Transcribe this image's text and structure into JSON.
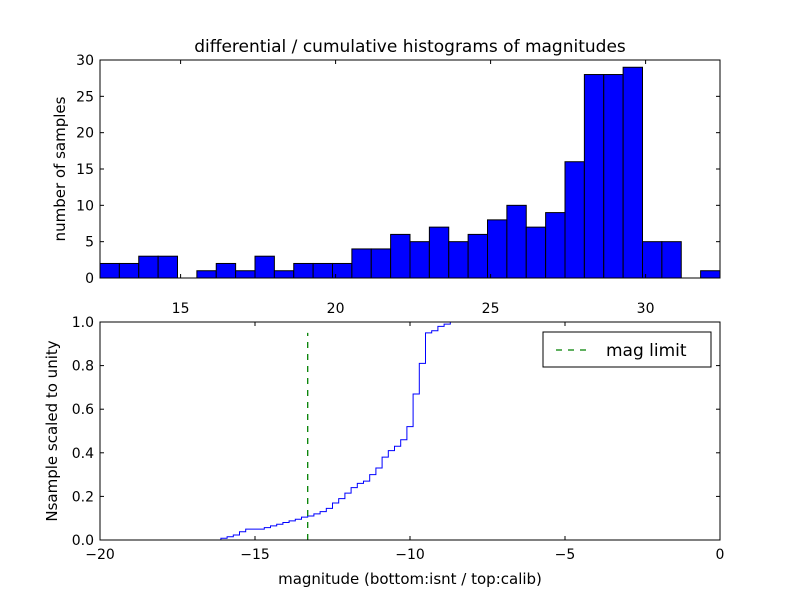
{
  "figure": {
    "title": "differential / cumulative histograms of magnitudes"
  },
  "chart_data": [
    {
      "type": "bar",
      "title": "differential / cumulative histograms of magnitudes",
      "xlabel": "",
      "ylabel": "number of samples",
      "xlim": [
        12.4,
        32.4
      ],
      "ylim": [
        0,
        30
      ],
      "x_ticks": [
        15,
        20,
        25,
        30
      ],
      "x_tick_labels": [
        "15",
        "20",
        "25",
        "30"
      ],
      "y_ticks": [
        0,
        5,
        10,
        15,
        20,
        25,
        30
      ],
      "y_tick_labels": [
        "0",
        "5",
        "10",
        "15",
        "20",
        "25",
        "30"
      ],
      "x_tick_position": "top-of-lower-panel",
      "bar_color": "#0000ff",
      "bin_start": 12.4,
      "bin_width": 0.625,
      "values": [
        2,
        2,
        3,
        3,
        0,
        1,
        2,
        1,
        3,
        1,
        2,
        2,
        2,
        4,
        4,
        6,
        5,
        7,
        5,
        6,
        8,
        10,
        7,
        9,
        16,
        28,
        28,
        29,
        5,
        5,
        0,
        1
      ],
      "grid": false
    },
    {
      "type": "line",
      "drawstyle": "steps",
      "title": "",
      "xlabel": "magnitude (bottom:isnt / top:calib)",
      "ylabel": "Nsample scaled to unity",
      "xlim": [
        -20,
        0
      ],
      "ylim": [
        0,
        1.0
      ],
      "x_ticks": [
        -20,
        -15,
        -10,
        -5,
        0
      ],
      "x_tick_labels": [
        "−20",
        "−15",
        "−10",
        "−5",
        "0"
      ],
      "y_ticks": [
        0,
        0.2,
        0.4,
        0.6,
        0.8,
        1.0
      ],
      "y_tick_labels": [
        "0.0",
        "0.2",
        "0.4",
        "0.6",
        "0.8",
        "1.0"
      ],
      "series": [
        {
          "color": "#0000ff",
          "x": [
            -20,
            -16.1,
            -15.9,
            -15.7,
            -15.5,
            -15.3,
            -14.7,
            -14.5,
            -14.3,
            -14.1,
            -13.9,
            -13.7,
            -13.5,
            -13.3,
            -13.1,
            -12.9,
            -12.7,
            -12.5,
            -12.3,
            -12.1,
            -11.9,
            -11.7,
            -11.5,
            -11.3,
            -11.1,
            -10.9,
            -10.7,
            -10.5,
            -10.3,
            -10.1,
            -9.9,
            -9.7,
            -9.5,
            -9.3,
            -9.1,
            -8.9,
            -8.7,
            -8.5,
            -8.3,
            0
          ],
          "y": [
            0,
            0.008,
            0.015,
            0.023,
            0.038,
            0.05,
            0.057,
            0.065,
            0.072,
            0.08,
            0.088,
            0.095,
            0.105,
            0.11,
            0.12,
            0.13,
            0.145,
            0.17,
            0.19,
            0.215,
            0.24,
            0.26,
            0.27,
            0.3,
            0.33,
            0.38,
            0.41,
            0.43,
            0.46,
            0.52,
            0.67,
            0.81,
            0.95,
            0.96,
            0.98,
            0.99,
            1.0,
            1.0,
            1.0,
            1.0
          ]
        }
      ],
      "vline": {
        "x": -13.3,
        "style": "dashed",
        "color": "#008000",
        "ymax": 0.95
      },
      "legend": {
        "position": "top-right",
        "entries": [
          {
            "label": "mag limit",
            "color": "#008000",
            "style": "dashed"
          }
        ]
      },
      "grid": false
    }
  ]
}
